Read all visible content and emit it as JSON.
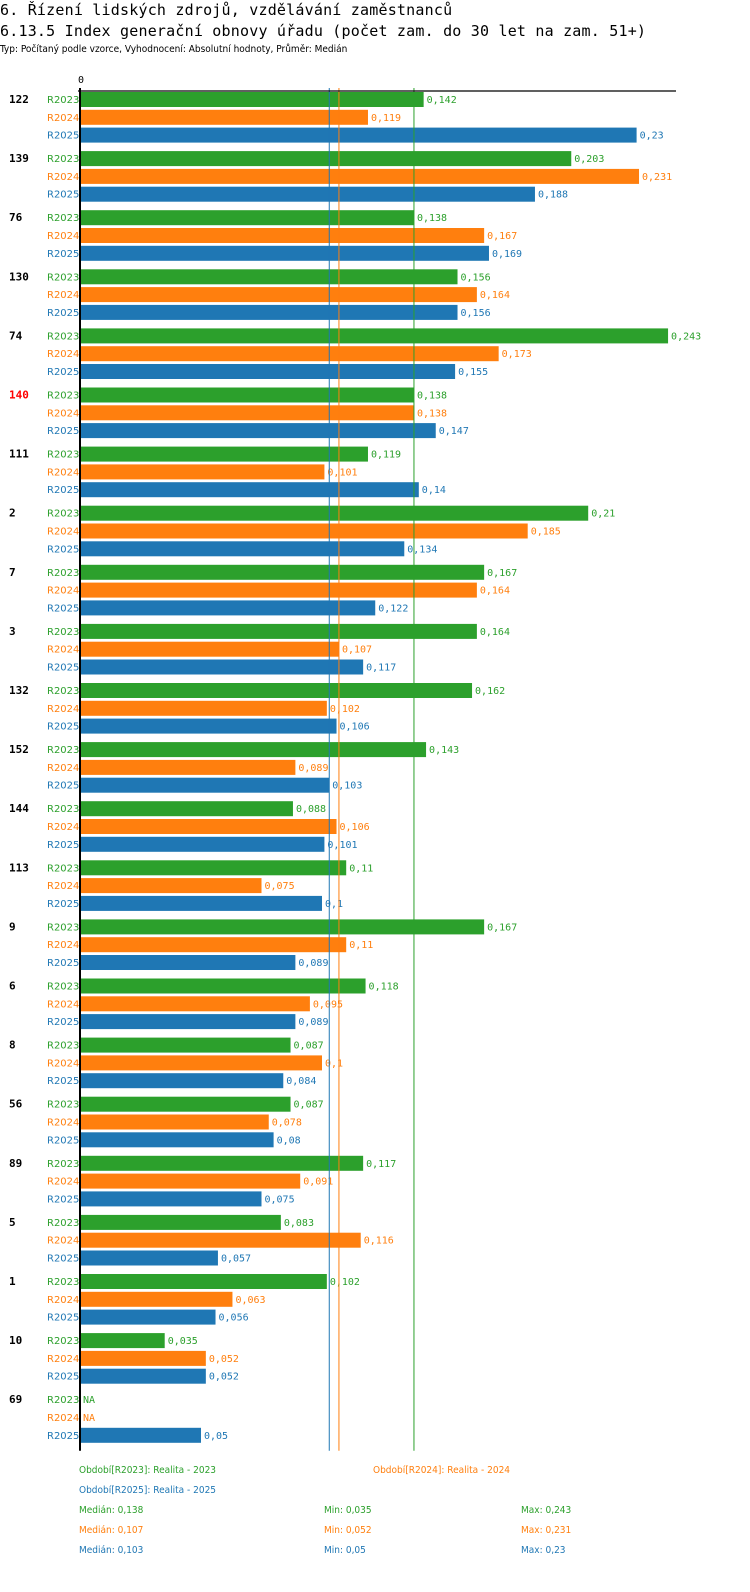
{
  "header": {
    "title": "6. Řízení lidských zdrojů, vzdělávání zaměstnanců",
    "subtitle": "6.13.5 Index generační obnovy úřadu (počet zam. do 30 let na zam. 51+)",
    "info": "Typ: Počítaný podle vzorce, Vyhodnocení: Absolutní hodnoty, Průměr: Medián"
  },
  "chart_data": {
    "type": "bar",
    "orientation": "horizontal",
    "title": "6.13.5 Index generační obnovy úřadu (počet zam. do 30 let na zam. 51+)",
    "xlabel": "",
    "ylabel": "",
    "x_tick_labels": [
      "0"
    ],
    "xlim": [
      0,
      0.246
    ],
    "grid": false,
    "decimal_separator": ",",
    "highlight_category": "140",
    "highlight_color": "#ff0000",
    "categories": [
      "122",
      "139",
      "76",
      "130",
      "74",
      "140",
      "111",
      "2",
      "7",
      "3",
      "132",
      "152",
      "144",
      "113",
      "9",
      "6",
      "8",
      "56",
      "89",
      "5",
      "1",
      "10",
      "69"
    ],
    "series": [
      {
        "name": "R2023",
        "color": "#2ca02c",
        "values": [
          0.142,
          0.203,
          0.138,
          0.156,
          0.243,
          0.138,
          0.119,
          0.21,
          0.167,
          0.164,
          0.162,
          0.143,
          0.088,
          0.11,
          0.167,
          0.118,
          0.087,
          0.087,
          0.117,
          0.083,
          0.102,
          0.035,
          null
        ]
      },
      {
        "name": "R2024",
        "color": "#ff7f0e",
        "values": [
          0.119,
          0.231,
          0.167,
          0.164,
          0.173,
          0.138,
          0.101,
          0.185,
          0.164,
          0.107,
          0.102,
          0.089,
          0.106,
          0.075,
          0.11,
          0.095,
          0.1,
          0.078,
          0.091,
          0.116,
          0.063,
          0.052,
          null
        ]
      },
      {
        "name": "R2025",
        "color": "#1f77b4",
        "values": [
          0.23,
          0.188,
          0.169,
          0.156,
          0.155,
          0.147,
          0.14,
          0.134,
          0.122,
          0.117,
          0.106,
          0.103,
          0.101,
          0.1,
          0.089,
          0.089,
          0.084,
          0.08,
          0.075,
          0.057,
          0.056,
          0.052,
          0.05
        ]
      }
    ],
    "na_label": "NA",
    "reference_lines": [
      {
        "series": "R2023",
        "type": "median",
        "value": 0.138
      },
      {
        "series": "R2024",
        "type": "median",
        "value": 0.107
      },
      {
        "series": "R2025",
        "type": "median",
        "value": 0.103
      }
    ],
    "legend": {
      "position": "bottom",
      "entries": [
        {
          "label": "Období[R2023]: Realita - 2023",
          "color": "#2ca02c"
        },
        {
          "label": "Období[R2024]: Realita - 2024",
          "color": "#ff7f0e"
        },
        {
          "label": "Období[R2025]: Realita - 2025",
          "color": "#1f77b4"
        }
      ]
    },
    "stats": [
      {
        "series": "R2023",
        "color": "#2ca02c",
        "median": "Medián: 0,138",
        "min": "Min: 0,035",
        "max": "Max: 0,243"
      },
      {
        "series": "R2024",
        "color": "#ff7f0e",
        "median": "Medián: 0,107",
        "min": "Min: 0,052",
        "max": "Max: 0,231"
      },
      {
        "series": "R2025",
        "color": "#1f77b4",
        "median": "Medián: 0,103",
        "min": "Min: 0,05",
        "max": "Max: 0,23"
      }
    ]
  }
}
